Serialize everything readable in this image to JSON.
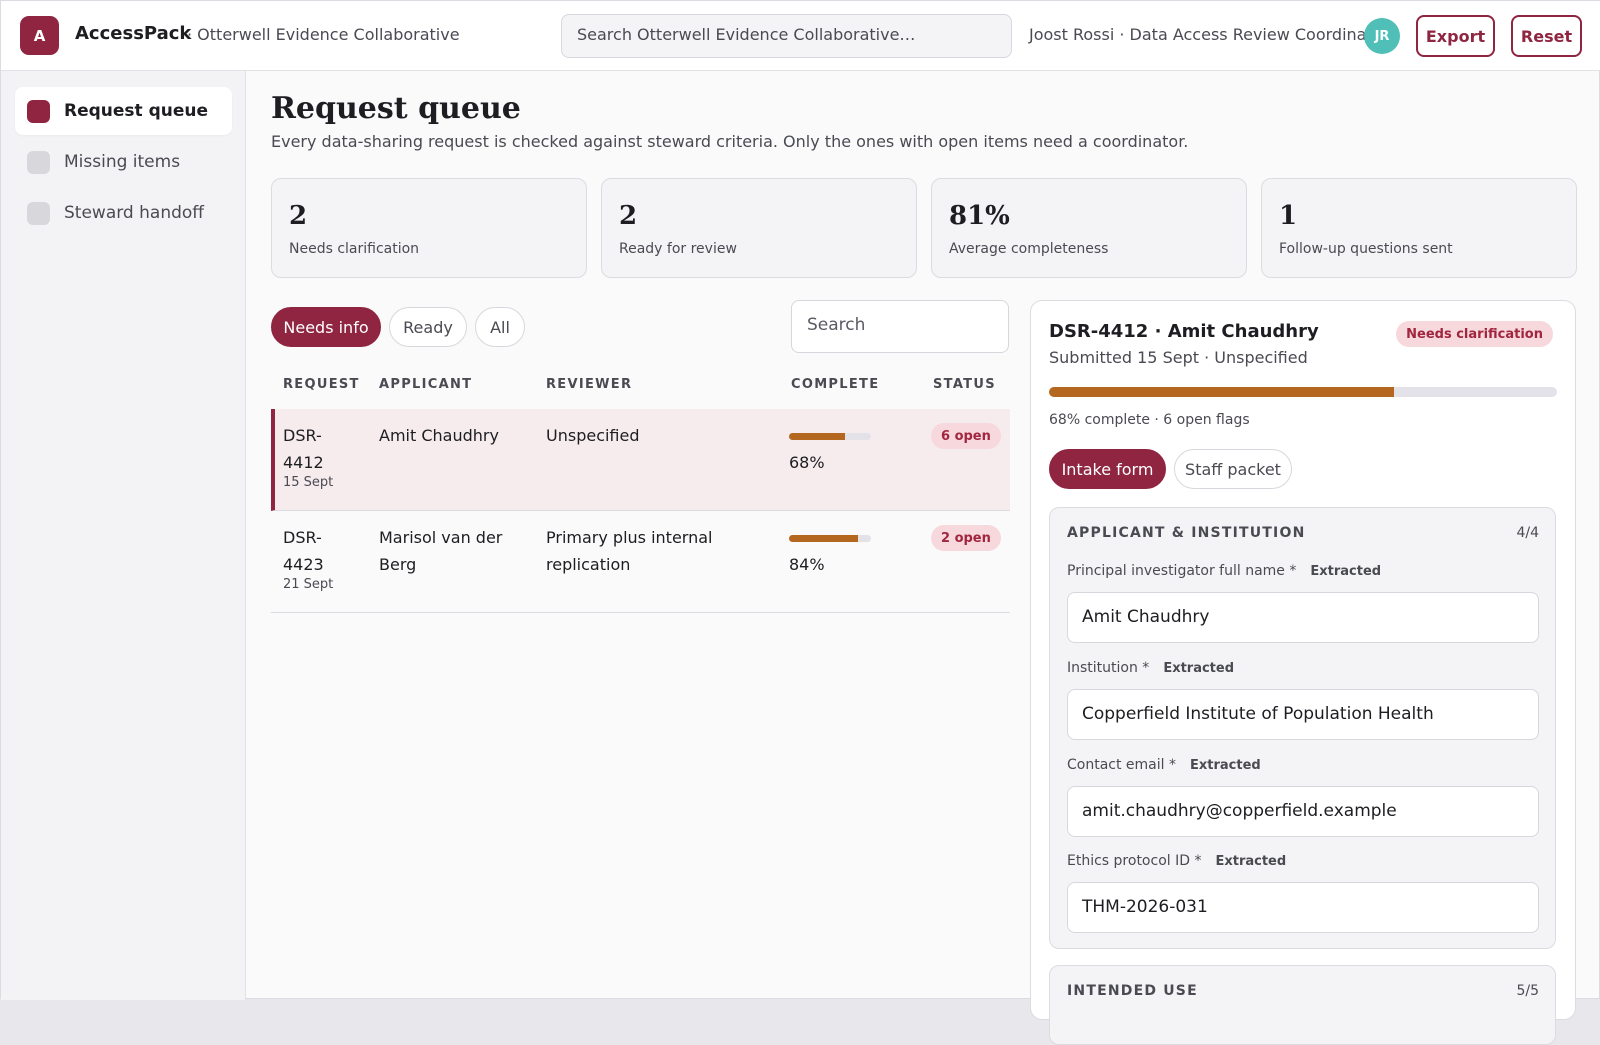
{
  "app": {
    "logo_letter": "A",
    "name": "AccessPack",
    "org": "· Otterwell Evidence Collaborative",
    "search_placeholder": "Search Otterwell Evidence Collaborative…",
    "user": "Joost Rossi · Data Access Review Coordinator",
    "avatar_initials": "JR",
    "export_label": "Export",
    "reset_label": "Reset",
    "brand_color": "#8f2540"
  },
  "sidebar": {
    "items": [
      {
        "label": "Request queue",
        "active": true
      },
      {
        "label": "Missing items",
        "active": false
      },
      {
        "label": "Steward handoff",
        "active": false
      }
    ]
  },
  "main": {
    "title": "Request queue",
    "subtitle": "Every data-sharing request is checked against steward criteria. Only the ones with open items need a coordinator.",
    "stats": [
      {
        "value": "2",
        "label": "Needs clarification"
      },
      {
        "value": "2",
        "label": "Ready for review"
      },
      {
        "value": "81%",
        "label": "Average completeness"
      },
      {
        "value": "1",
        "label": "Follow-up questions sent"
      }
    ],
    "filters": [
      {
        "label": "Needs info",
        "active": true
      },
      {
        "label": "Ready",
        "active": false
      },
      {
        "label": "All",
        "active": false
      }
    ],
    "table_search_placeholder": "Search",
    "columns": [
      "REQUEST",
      "APPLICANT",
      "REVIEWER",
      "COMPLETE",
      "STATUS"
    ],
    "rows": [
      {
        "id": "DSR-4412",
        "date": "15 Sept",
        "applicant": "Amit Chaudhry",
        "reviewer": "Unspecified",
        "complete": 0.68,
        "complete_label": "68%",
        "status": "6 open",
        "selected": true
      },
      {
        "id": "DSR-4423",
        "date": "21 Sept",
        "applicant": "Marisol van der Berg",
        "reviewer": "Primary plus internal replication",
        "complete": 0.84,
        "complete_label": "84%",
        "status": "2 open",
        "selected": false
      }
    ]
  },
  "detail": {
    "title": "DSR-4412 · Amit Chaudhry",
    "status": "Needs clarification",
    "submitted": "Submitted 15 Sept · Unspecified",
    "progress": 0.68,
    "summary": "68% complete · 6 open flags",
    "tabs": [
      {
        "label": "Intake form",
        "active": true
      },
      {
        "label": "Staff packet",
        "active": false
      }
    ],
    "sections": [
      {
        "title": "APPLICANT & INSTITUTION",
        "count": "4/4",
        "fields": [
          {
            "label": "Principal investigator full name *",
            "tag": "Extracted",
            "value": "Amit Chaudhry"
          },
          {
            "label": "Institution *",
            "tag": "Extracted",
            "value": "Copperfield Institute of Population Health"
          },
          {
            "label": "Contact email *",
            "tag": "Extracted",
            "value": "amit.chaudhry@copperfield.example"
          },
          {
            "label": "Ethics protocol ID *",
            "tag": "Extracted",
            "value": "THM-2026-031"
          }
        ]
      },
      {
        "title": "INTENDED USE",
        "count": "5/5"
      }
    ],
    "progress_color": "#b3671f"
  }
}
